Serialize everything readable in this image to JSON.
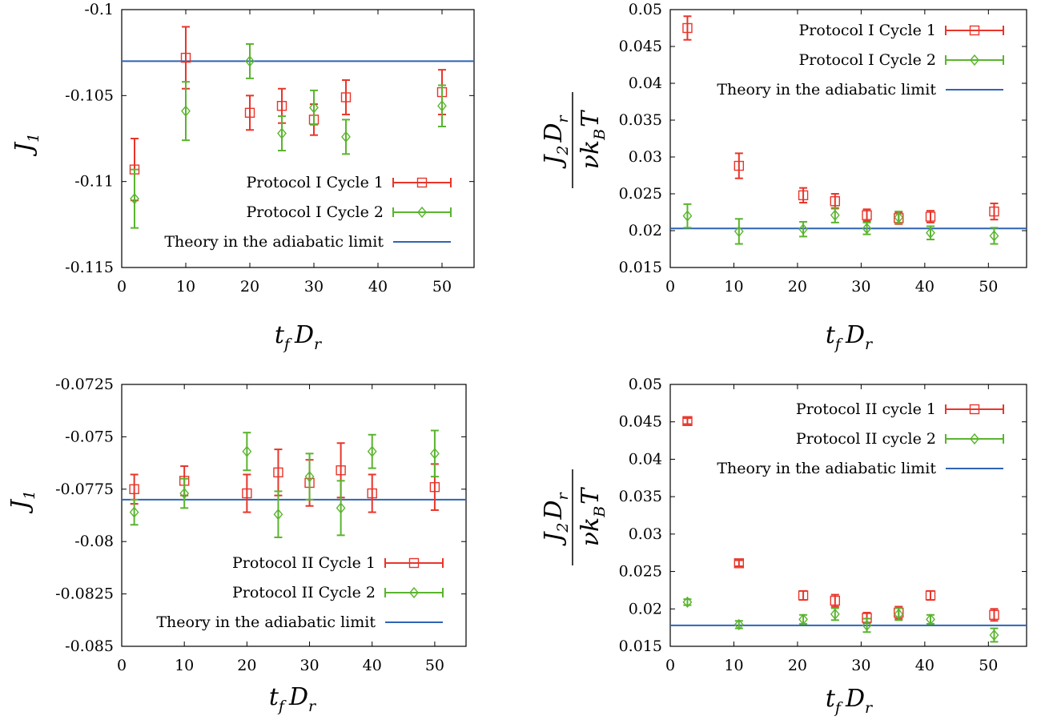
{
  "colors": {
    "series1": "#e8352a",
    "series2": "#5ab42e",
    "theory": "#2f64b4",
    "axis": "#000000"
  },
  "chart_data": [
    {
      "type": "scatter",
      "error_bars": true,
      "ylabel": "J_1",
      "xlabel": "t_f D_r",
      "xlim": [
        0,
        55
      ],
      "ylim": [
        -0.115,
        -0.1
      ],
      "xticks": [
        "0",
        "10",
        "20",
        "30",
        "40",
        "50"
      ],
      "yticks": [
        "-0.1",
        "-0.105",
        "-0.11",
        "-0.115"
      ],
      "legend_position": "lower-right",
      "series": [
        {
          "name": "Protocol I Cycle 1",
          "marker": "square",
          "color_key": "series1",
          "x": [
            2,
            10,
            20,
            25,
            30,
            35,
            50
          ],
          "y": [
            -0.1093,
            -0.1028,
            -0.106,
            -0.1056,
            -0.1064,
            -0.1051,
            -0.1048
          ],
          "err": [
            0.0018,
            0.0018,
            0.001,
            0.001,
            0.0009,
            0.001,
            0.0013
          ]
        },
        {
          "name": "Protocol I Cycle 2",
          "marker": "diamond",
          "color_key": "series2",
          "x": [
            2,
            10,
            20,
            25,
            30,
            35,
            50
          ],
          "y": [
            -0.111,
            -0.1059,
            -0.103,
            -0.1072,
            -0.1057,
            -0.1074,
            -0.1056
          ],
          "err": [
            0.0017,
            0.0017,
            0.001,
            0.001,
            0.001,
            0.001,
            0.0012
          ]
        }
      ],
      "reference_line": {
        "name": "Theory in the adiabatic limit",
        "y": -0.103,
        "color_key": "theory"
      }
    },
    {
      "type": "scatter",
      "error_bars": true,
      "ylabel": "J_2 D_r / ν k_B T",
      "xlabel": "t_f D_r",
      "xlim": [
        0,
        56
      ],
      "ylim": [
        0.015,
        0.05
      ],
      "xticks": [
        "0",
        "10",
        "20",
        "30",
        "40",
        "50"
      ],
      "yticks": [
        "0.05",
        "0.045",
        "0.04",
        "0.035",
        "0.03",
        "0.025",
        "0.02",
        "0.015"
      ],
      "legend_position": "top-right",
      "series": [
        {
          "name": "Protocol I Cycle 1",
          "marker": "square",
          "color_key": "series1",
          "x": [
            2.7,
            10.8,
            20.9,
            25.9,
            30.9,
            35.9,
            40.9,
            50.9
          ],
          "y": [
            0.0475,
            0.0288,
            0.0248,
            0.024,
            0.0221,
            0.0217,
            0.0219,
            0.0226
          ],
          "err": [
            0.0016,
            0.0017,
            0.001,
            0.001,
            0.0008,
            0.0008,
            0.0008,
            0.0011
          ]
        },
        {
          "name": "Protocol I Cycle 2",
          "marker": "diamond",
          "color_key": "series2",
          "x": [
            2.7,
            10.8,
            20.9,
            25.9,
            30.9,
            35.9,
            40.9,
            50.9
          ],
          "y": [
            0.022,
            0.0199,
            0.0202,
            0.0221,
            0.0203,
            0.0218,
            0.0197,
            0.0193
          ],
          "err": [
            0.0016,
            0.0017,
            0.001,
            0.001,
            0.0008,
            0.0008,
            0.0009,
            0.0011
          ]
        }
      ],
      "reference_line": {
        "name": "Theory in the adiabatic limit",
        "y": 0.0203,
        "color_key": "theory"
      }
    },
    {
      "type": "scatter",
      "error_bars": true,
      "ylabel": "J_1",
      "xlabel": "t_f D_r",
      "xlim": [
        0,
        55
      ],
      "ylim": [
        -0.085,
        -0.0725
      ],
      "xticks": [
        "0",
        "10",
        "20",
        "30",
        "40",
        "50"
      ],
      "yticks": [
        "-0.0725",
        "-0.075",
        "-0.0775",
        "-0.08",
        "-0.0825",
        "-0.085"
      ],
      "legend_position": "lower-right",
      "series": [
        {
          "name": "Protocol II Cycle 1",
          "marker": "square",
          "color_key": "series1",
          "x": [
            2,
            10,
            20,
            25,
            30,
            35,
            40,
            50
          ],
          "y": [
            -0.0775,
            -0.0771,
            -0.0777,
            -0.0767,
            -0.0772,
            -0.0766,
            -0.0777,
            -0.0774
          ],
          "err": [
            0.0007,
            0.0007,
            0.0009,
            0.0011,
            0.0011,
            0.0013,
            0.0009,
            0.0011
          ]
        },
        {
          "name": "Protocol II Cycle 2",
          "marker": "diamond",
          "color_key": "series2",
          "x": [
            2,
            10,
            20,
            25,
            30,
            35,
            40,
            50
          ],
          "y": [
            -0.0786,
            -0.0777,
            -0.0757,
            -0.0787,
            -0.0769,
            -0.0784,
            -0.0757,
            -0.0758
          ],
          "err": [
            0.0006,
            0.0007,
            0.0009,
            0.0011,
            0.0011,
            0.0013,
            0.0008,
            0.0011
          ]
        }
      ],
      "reference_line": {
        "name": "Theory in the adiabatic limit",
        "y": -0.078,
        "color_key": "theory"
      }
    },
    {
      "type": "scatter",
      "error_bars": true,
      "ylabel": "J_2 D_r / ν k_B T",
      "xlabel": "t_f D_r",
      "xlim": [
        0,
        56
      ],
      "ylim": [
        0.015,
        0.05
      ],
      "xticks": [
        "0",
        "10",
        "20",
        "30",
        "40",
        "50"
      ],
      "yticks": [
        "0.05",
        "0.045",
        "0.04",
        "0.035",
        "0.03",
        "0.025",
        "0.02",
        "0.015"
      ],
      "legend_position": "top-right",
      "series": [
        {
          "name": "Protocol II cycle 1",
          "marker": "square",
          "color_key": "series1",
          "x": [
            2.7,
            10.8,
            20.9,
            25.9,
            30.9,
            35.9,
            40.9,
            50.9
          ],
          "y": [
            0.0451,
            0.0261,
            0.0218,
            0.0211,
            0.0188,
            0.0195,
            0.0218,
            0.0192
          ],
          "err": [
            0.0004,
            0.0004,
            0.0006,
            0.0008,
            0.0007,
            0.0008,
            0.0006,
            0.0008
          ]
        },
        {
          "name": "Protocol II cycle 2",
          "marker": "diamond",
          "color_key": "series2",
          "x": [
            2.7,
            10.8,
            20.9,
            25.9,
            30.9,
            35.9,
            40.9,
            50.9
          ],
          "y": [
            0.0209,
            0.0179,
            0.0186,
            0.0193,
            0.0178,
            0.0193,
            0.0186,
            0.0165
          ],
          "err": [
            0.0004,
            0.0005,
            0.0006,
            0.0008,
            0.0009,
            0.0008,
            0.0006,
            0.0009
          ]
        }
      ],
      "reference_line": {
        "name": "Theory in the adiabatic limit",
        "y": 0.0178,
        "color_key": "theory"
      }
    }
  ]
}
